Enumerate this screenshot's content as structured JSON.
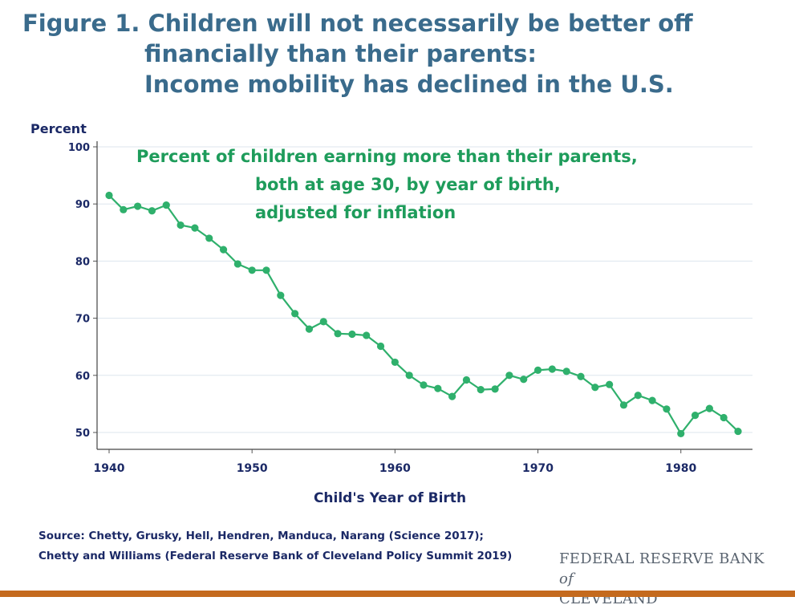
{
  "title": {
    "line1": "Figure 1. Children will not necessarily be better off",
    "line2": "financially than their parents:",
    "line3": "Income mobility has declined in the U.S."
  },
  "source": {
    "line1": "Source: Chetty, Grusky, Hell, Hendren, Manduca, Narang (Science 2017);",
    "line2": "Chetty and Williams (Federal Reserve Bank of Cleveland Policy Summit 2019)"
  },
  "logo": {
    "line1": "FEDERAL RESERVE BANK",
    "of": "of",
    "line2": "CLEVELAND"
  },
  "colors": {
    "title": "#3a6b8c",
    "series": "#2fb06c",
    "annotation": "#1e9c5b",
    "axis_text": "#1b2966",
    "grid": "#dde6ee",
    "bottom_bar": "#c46a1e"
  },
  "chart_data": {
    "type": "line",
    "ylabel": "Percent",
    "xlabel": "Child's Year of Birth",
    "annotation": [
      "Percent of children earning more than their parents,",
      "both at age 30, by year of birth,",
      "adjusted for inflation"
    ],
    "xlim": [
      1940,
      1984
    ],
    "ylim": [
      48,
      100
    ],
    "xticks": [
      1940,
      1950,
      1960,
      1970,
      1980
    ],
    "yticks": [
      50,
      60,
      70,
      80,
      90,
      100
    ],
    "grid": true,
    "series": [
      {
        "x": [
          1940,
          1941,
          1942,
          1943,
          1944,
          1945,
          1946,
          1947,
          1948,
          1949,
          1950,
          1951,
          1952,
          1953,
          1954,
          1955,
          1956,
          1957,
          1958,
          1959,
          1960,
          1961,
          1962,
          1963,
          1964,
          1965,
          1966,
          1967,
          1968,
          1969,
          1970,
          1971,
          1972,
          1973,
          1974,
          1975,
          1976,
          1977,
          1978,
          1979,
          1980,
          1981,
          1982,
          1983,
          1984
        ],
        "y": [
          91.5,
          89.0,
          89.6,
          88.8,
          89.8,
          86.3,
          85.8,
          84.0,
          82.0,
          79.5,
          78.4,
          78.4,
          74.0,
          70.8,
          68.1,
          69.4,
          67.3,
          67.2,
          67.0,
          65.1,
          62.3,
          60.0,
          58.3,
          57.7,
          56.3,
          59.2,
          57.5,
          57.6,
          60.0,
          59.3,
          60.9,
          61.1,
          60.7,
          59.8,
          57.9,
          58.4,
          54.8,
          56.5,
          55.6,
          54.1,
          49.8,
          53.0,
          54.2,
          52.6,
          50.2
        ]
      }
    ]
  }
}
